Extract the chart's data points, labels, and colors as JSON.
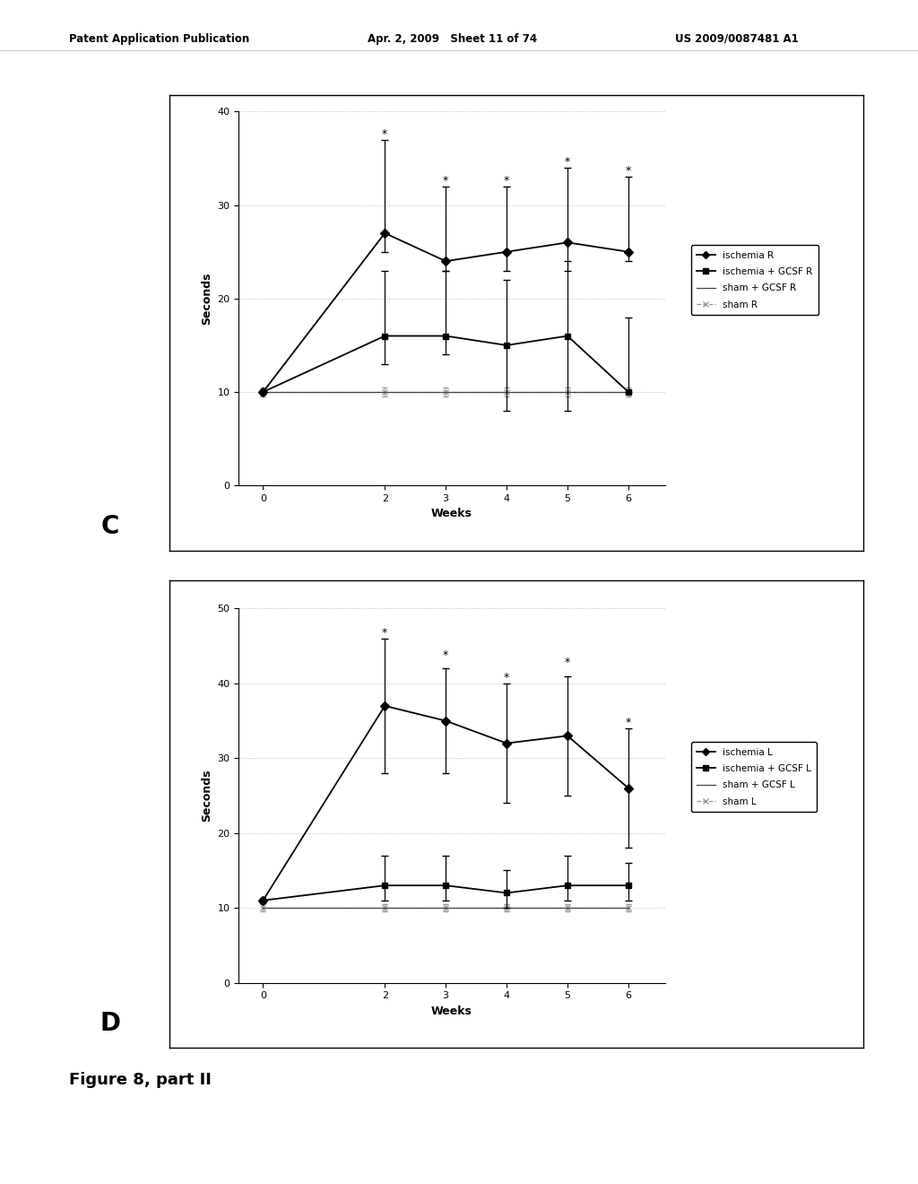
{
  "header_left": "Patent Application Publication",
  "header_mid": "Apr. 2, 2009   Sheet 11 of 74",
  "header_right": "US 2009/0087481 A1",
  "figure_label": "Figure 8, part II",
  "panel_C": {
    "label": "C",
    "weeks": [
      0,
      2,
      3,
      4,
      5,
      6
    ],
    "ischemia_R": [
      10,
      27,
      24,
      25,
      26,
      25
    ],
    "ischemia_R_err_up": [
      0,
      10,
      8,
      7,
      8,
      8
    ],
    "ischemia_R_err_dn": [
      0,
      2,
      1,
      2,
      3,
      1
    ],
    "ischemia_GCSF_R": [
      10,
      16,
      16,
      15,
      16,
      10
    ],
    "ischemia_GCSF_R_err_up": [
      0,
      7,
      7,
      7,
      8,
      8
    ],
    "ischemia_GCSF_R_err_dn": [
      0,
      3,
      2,
      7,
      8,
      0
    ],
    "sham_GCSF_R": [
      10,
      10,
      10,
      10,
      10,
      10
    ],
    "sham_R": [
      10,
      10,
      10,
      10,
      10,
      10
    ],
    "sham_R_err": [
      0.5,
      0.5,
      0.5,
      0.5,
      0.5,
      0.5
    ],
    "star_x": [
      2,
      3,
      4,
      5,
      6
    ],
    "star_y": [
      37,
      32,
      32,
      34,
      33
    ],
    "ylim": [
      0,
      40
    ],
    "yticks": [
      0,
      10,
      20,
      30,
      40
    ],
    "ylabel": "Seconds",
    "xlabel": "Weeks",
    "legend": [
      "ischemia R",
      "ischemia + GCSF R",
      "sham + GCSF R",
      "sham R"
    ]
  },
  "panel_D": {
    "label": "D",
    "weeks": [
      0,
      2,
      3,
      4,
      5,
      6
    ],
    "ischemia_L": [
      11,
      37,
      35,
      32,
      33,
      26
    ],
    "ischemia_L_err_up": [
      0,
      9,
      7,
      8,
      8,
      8
    ],
    "ischemia_L_err_dn": [
      0,
      9,
      7,
      8,
      8,
      8
    ],
    "ischemia_GCSF_L": [
      11,
      13,
      13,
      12,
      13,
      13
    ],
    "ischemia_GCSF_L_err_up": [
      0,
      4,
      4,
      3,
      4,
      3
    ],
    "ischemia_GCSF_L_err_dn": [
      0,
      2,
      2,
      2,
      2,
      2
    ],
    "sham_GCSF_L": [
      10,
      10,
      10,
      10,
      10,
      10
    ],
    "sham_L": [
      10,
      10,
      10,
      10,
      10,
      10
    ],
    "sham_L_err": [
      0.5,
      0.5,
      0.5,
      0.5,
      0.5,
      0.5
    ],
    "star_x": [
      2,
      3,
      4,
      5,
      6
    ],
    "star_y": [
      46,
      43,
      40,
      42,
      34
    ],
    "ylim": [
      0,
      50
    ],
    "yticks": [
      0,
      10,
      20,
      30,
      40,
      50
    ],
    "ylabel": "Seconds",
    "xlabel": "Weeks",
    "legend": [
      "ischemia L",
      "ischemia + GCSF L",
      "sham + GCSF L",
      "sham L"
    ]
  },
  "bg_color": "#ffffff",
  "grid_color": "#bbbbbb"
}
